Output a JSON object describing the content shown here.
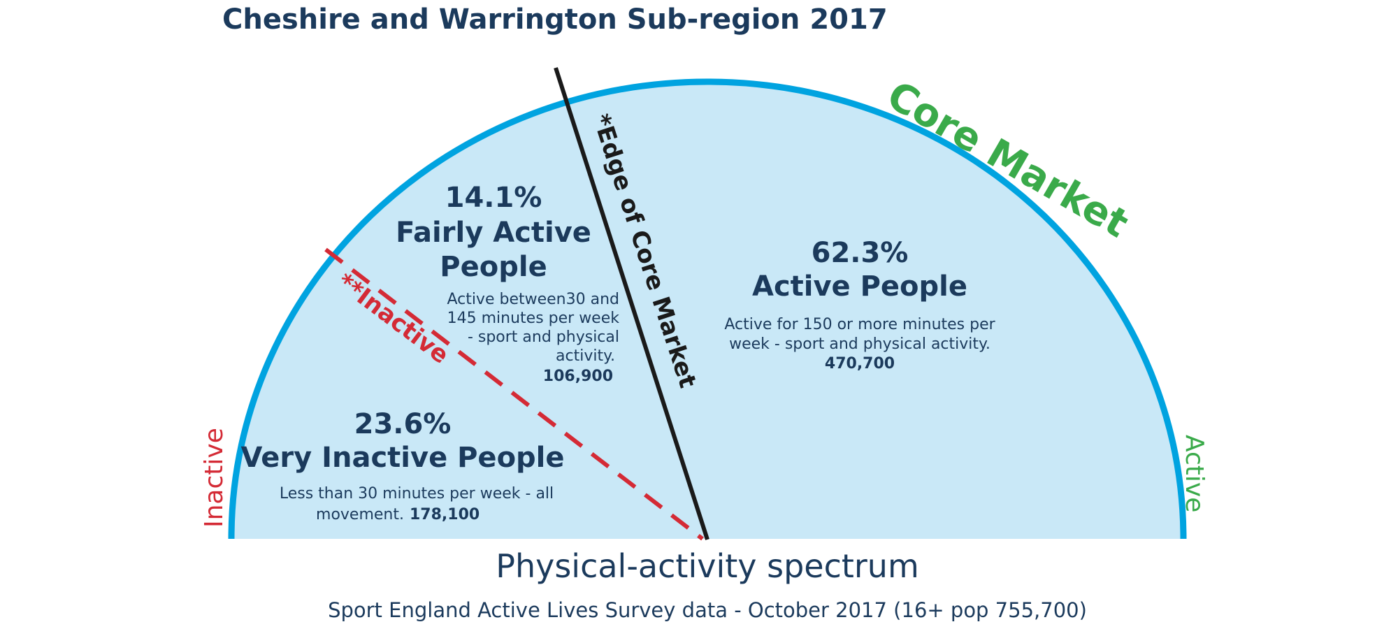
{
  "header": {
    "title": "Cheshire and Warrington Sub-region 2017"
  },
  "colors": {
    "arc_fill": "#c9e8f7",
    "arc_stroke": "#00a3e0",
    "navy_text": "#1b3a5c",
    "green_text": "#3aaa4a",
    "red_text": "#d42a35",
    "edge_line": "#1a1a1a"
  },
  "arc_labels": {
    "core_market": "Core Market",
    "inactive_end": "Inactive",
    "active_end": "Active",
    "edge_of_core_market": "*Edge of Core Market",
    "inactive_line": "**Inactive"
  },
  "segments": {
    "very_inactive": {
      "percent": "23.6%",
      "name": "Very Inactive People",
      "description_line1": "Less than 30 minutes per week - all",
      "description_line2": "movement.",
      "count": "178,100"
    },
    "fairly_active": {
      "percent": "14.1%",
      "name_line1": "Fairly Active",
      "name_line2": "People",
      "description_line1": "Active between30 and",
      "description_line2": "145 minutes per week",
      "description_line3": "- sport and physical",
      "description_line4": "activity.",
      "count": "106,900"
    },
    "active": {
      "percent": "62.3%",
      "name": "Active People",
      "description_line1": "Active for 150 or more minutes per",
      "description_line2": "week - sport and physical activity.",
      "count": "470,700"
    }
  },
  "footer": {
    "spectrum_title": "Physical-activity spectrum",
    "source": "Sport England Active Lives Survey data - October 2017 (16+ pop 755,700)"
  }
}
